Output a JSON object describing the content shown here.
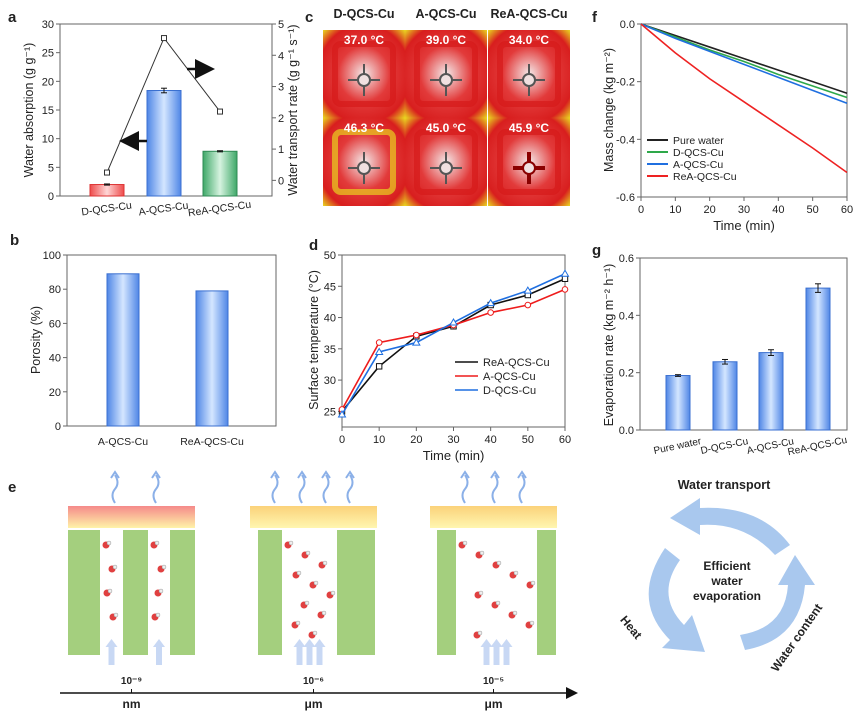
{
  "chart_data": [
    {
      "panel": "a",
      "type": "bar+line",
      "categories": [
        "D-QCS-Cu",
        "A-QCS-Cu",
        "ReA-QCS-Cu"
      ],
      "bar_series": {
        "name": "Water absorption",
        "values": [
          2.0,
          18.4,
          7.8
        ],
        "errors": [
          0.1,
          0.4,
          0.1
        ],
        "colors": [
          "#f06a6a",
          "#5b8fe8",
          "#4cb07a"
        ]
      },
      "line_series": {
        "name": "Water transport rate",
        "values": [
          0.25,
          4.55,
          2.2
        ],
        "errors": [
          0.05,
          0.08,
          0.04
        ]
      },
      "ylabel": "Water absorption (g g⁻¹)",
      "ylim": [
        0,
        30
      ],
      "yticks": [
        0,
        5,
        10,
        15,
        20,
        25,
        30
      ],
      "y2label": "Water transport rate (g g⁻¹ s⁻¹)",
      "y2lim": [
        -0.5,
        5
      ],
      "y2ticks": [
        0,
        1,
        2,
        3,
        4,
        5
      ]
    },
    {
      "panel": "b",
      "type": "bar",
      "categories": [
        "A-QCS-Cu",
        "ReA-QCS-Cu"
      ],
      "values": [
        89,
        79
      ],
      "ylabel": "Porosity (%)",
      "ylim": [
        0,
        100
      ],
      "yticks": [
        0,
        20,
        40,
        60,
        80,
        100
      ]
    },
    {
      "panel": "d",
      "type": "line",
      "x": [
        0,
        10,
        20,
        30,
        40,
        50,
        60
      ],
      "series": [
        {
          "name": "ReA-QCS-Cu",
          "color": "#111111",
          "marker": "square",
          "values": [
            25.0,
            32.2,
            37.0,
            38.6,
            42.0,
            43.6,
            46.2
          ]
        },
        {
          "name": "A-QCS-Cu",
          "color": "#ee1c1c",
          "marker": "circle",
          "values": [
            25.3,
            36.0,
            37.2,
            38.8,
            40.8,
            42.0,
            44.5
          ]
        },
        {
          "name": "D-QCS-Cu",
          "color": "#1f6fe0",
          "marker": "triangle",
          "values": [
            24.5,
            34.5,
            36.0,
            39.2,
            42.3,
            44.3,
            47.0
          ]
        }
      ],
      "xlabel": "Time (min)",
      "ylabel": "Surface temperature (°C)",
      "xlim": [
        0,
        60
      ],
      "ylim": [
        22.5,
        50
      ],
      "xticks": [
        0,
        10,
        20,
        30,
        40,
        50,
        60
      ],
      "yticks": [
        25,
        30,
        35,
        40,
        45,
        50
      ],
      "legend": "center-right"
    },
    {
      "panel": "f",
      "type": "line",
      "x": [
        0,
        10,
        20,
        30,
        40,
        50,
        60
      ],
      "series": [
        {
          "name": "Pure water",
          "color": "#222222",
          "values": [
            0,
            -0.04,
            -0.08,
            -0.12,
            -0.16,
            -0.2,
            -0.24
          ]
        },
        {
          "name": "D-QCS-Cu",
          "color": "#2ea84a",
          "values": [
            0,
            -0.045,
            -0.09,
            -0.13,
            -0.175,
            -0.215,
            -0.255
          ]
        },
        {
          "name": "A-QCS-Cu",
          "color": "#1f6fe0",
          "values": [
            0,
            -0.05,
            -0.095,
            -0.14,
            -0.185,
            -0.23,
            -0.275
          ]
        },
        {
          "name": "ReA-QCS-Cu",
          "color": "#ee2222",
          "values": [
            0,
            -0.1,
            -0.19,
            -0.27,
            -0.35,
            -0.43,
            -0.515
          ]
        }
      ],
      "xlabel": "Time (min)",
      "ylabel": "Mass change (kg m⁻²)",
      "xlim": [
        0,
        60
      ],
      "ylim": [
        -0.6,
        0
      ],
      "xticks": [
        0,
        10,
        20,
        30,
        40,
        50,
        60
      ],
      "yticks": [
        -0.6,
        -0.4,
        -0.2,
        0.0
      ],
      "legend": "bottom-left"
    },
    {
      "panel": "g",
      "type": "bar",
      "categories": [
        "Pure water",
        "D-QCS-Cu",
        "A-QCS-Cu",
        "ReA-QCS-Cu"
      ],
      "values": [
        0.19,
        0.238,
        0.27,
        0.495
      ],
      "errors": [
        0.003,
        0.008,
        0.01,
        0.015
      ],
      "ylabel": "Evaporation rate (kg m⁻² h⁻¹)",
      "ylim": [
        0,
        0.6
      ],
      "yticks": [
        0.0,
        0.2,
        0.4,
        0.6
      ]
    }
  ],
  "panel_c": {
    "columns": [
      "D-QCS-Cu",
      "A-QCS-Cu",
      "ReA-QCS-Cu"
    ],
    "temperatures": [
      [
        "37.0 °C",
        "39.0 °C",
        "34.0 °C"
      ],
      [
        "46.3 °C",
        "45.0 °C",
        "45.9 °C"
      ]
    ]
  },
  "panel_e": {
    "scales": [
      {
        "exponent": "10⁻⁹",
        "unit": "nm"
      },
      {
        "exponent": "10⁻⁶",
        "unit": "μm"
      },
      {
        "exponent": "10⁻⁵",
        "unit": "μm"
      }
    ],
    "cycle": {
      "top": "Water transport",
      "center": [
        "Efficient",
        "water",
        "evaporation"
      ],
      "left": "Heat",
      "right": "Water content"
    }
  },
  "panel_letters": [
    "a",
    "b",
    "c",
    "d",
    "e",
    "f",
    "g"
  ]
}
